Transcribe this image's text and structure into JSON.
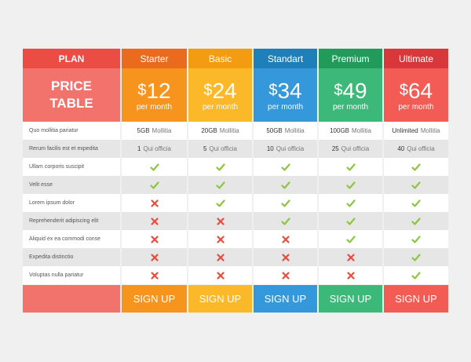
{
  "plan_header": "PLAN",
  "price_table_label": "PRICE TABLE",
  "price_table_line1": "PRICE",
  "price_table_line2": "TABLE",
  "features": [
    "Quo mollitia pariatur",
    "Rerum facilis est et expedita",
    "Ullam corporis suscipit",
    "Velit esse",
    "Lorem ipsum dolor",
    "Reprehenderit adipiscing elit",
    "Aliquid ex ea commodi conse",
    "Expedita distinctio",
    "Voluptas nulla pariatur"
  ],
  "plans": [
    {
      "name": "Starter",
      "currency": "$",
      "price": "12",
      "period": "per month",
      "storage_value": "5GB",
      "storage_label": "Mollitia",
      "qui_value": "1",
      "qui_label": "Qui officia",
      "checks": [
        "check",
        "check",
        "cross",
        "cross",
        "cross",
        "cross",
        "cross"
      ],
      "signup": "SIGN UP",
      "colors": {
        "head": "#eb6b1e",
        "price": "#f7941d",
        "signup": "#f7941d"
      }
    },
    {
      "name": "Basic",
      "currency": "$",
      "price": "24",
      "period": "per month",
      "storage_value": "20GB",
      "storage_label": "Mollitia",
      "qui_value": "5",
      "qui_label": "Qui officia",
      "checks": [
        "check",
        "check",
        "check",
        "cross",
        "cross",
        "cross",
        "cross"
      ],
      "signup": "SIGN UP",
      "colors": {
        "head": "#f39c12",
        "price": "#fbb829",
        "signup": "#fbb829"
      }
    },
    {
      "name": "Standart",
      "currency": "$",
      "price": "34",
      "period": "per month",
      "storage_value": "50GB",
      "storage_label": "Mollitia",
      "qui_value": "10",
      "qui_label": "Qui officia",
      "checks": [
        "check",
        "check",
        "check",
        "check",
        "cross",
        "cross",
        "cross"
      ],
      "signup": "SIGN UP",
      "colors": {
        "head": "#1f7fb8",
        "price": "#3498db",
        "signup": "#3498db"
      }
    },
    {
      "name": "Premium",
      "currency": "$",
      "price": "49",
      "period": "per month",
      "storage_value": "100GB",
      "storage_label": "Mollitia",
      "qui_value": "25",
      "qui_label": "Qui officia",
      "checks": [
        "check",
        "check",
        "check",
        "check",
        "check",
        "cross",
        "cross"
      ],
      "signup": "SIGN UP",
      "colors": {
        "head": "#229a5a",
        "price": "#3cb878",
        "signup": "#3cb878"
      }
    },
    {
      "name": "Ultimate",
      "currency": "$",
      "price": "64",
      "period": "per month",
      "storage_value": "Unlimited",
      "storage_label": "Mollitia",
      "qui_value": "40",
      "qui_label": "Qui officia",
      "checks": [
        "check",
        "check",
        "check",
        "check",
        "check",
        "check",
        "check"
      ],
      "signup": "SIGN UP",
      "colors": {
        "head": "#d9383a",
        "price": "#f25c54",
        "signup": "#f25c54"
      }
    }
  ],
  "colors": {
    "plan_head": "#eb4c44",
    "plan_price": "#f2736b",
    "plan_signup": "#f2736b",
    "check": "#8cc63f",
    "cross": "#e74c3c",
    "row_odd": "#ffffff",
    "row_even": "#e6e6e6"
  }
}
